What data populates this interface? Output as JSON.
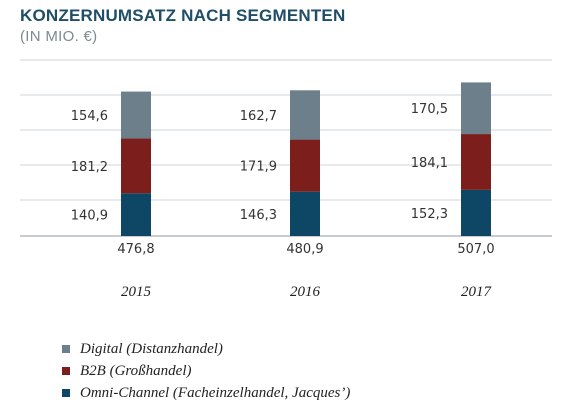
{
  "chart_data": {
    "type": "bar",
    "stacked": true,
    "title": "KONZERNUMSATZ NACH SEGMENTEN",
    "subtitle": "(IN MIO. €)",
    "categories": [
      "2015",
      "2016",
      "2017"
    ],
    "series": [
      {
        "name": "Omni-Channel (Facheinzelhandel, Jacques’)",
        "color": "#0e4765",
        "values": [
          "140,9",
          "146,3",
          "152,3"
        ]
      },
      {
        "name": "B2B (Großhandel)",
        "color": "#7b1e1c",
        "values": [
          "181,2",
          "171,9",
          "184,1"
        ]
      },
      {
        "name": "Digital (Distanzhandel)",
        "color": "#6c7f8b",
        "values": [
          "154,6",
          "162,7",
          "170,5"
        ]
      }
    ],
    "totals": [
      "476,8",
      "480,9",
      "507,0"
    ],
    "grid": true
  }
}
